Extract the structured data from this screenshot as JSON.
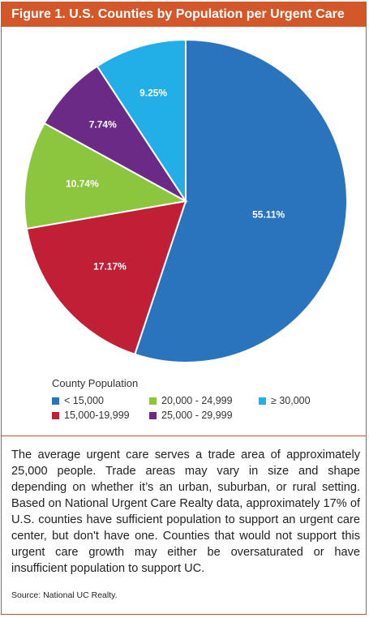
{
  "header": {
    "title": "Figure 1. U.S. Counties by Population per Urgent Care"
  },
  "chart_data": {
    "type": "pie",
    "title": "Figure 1. U.S. Counties by Population per Urgent Care",
    "legend_title": "County Population",
    "categories": [
      "< 15,000",
      "15,000-19,999",
      "20,000 - 24,999",
      "25,000 - 29,999",
      "≥ 30,000"
    ],
    "values": [
      55.11,
      17.17,
      10.74,
      7.74,
      9.25
    ],
    "labels": [
      "55.11%",
      "17.17%",
      "10.74%",
      "7.74%",
      "9.25%"
    ],
    "colors": [
      "#2a74bd",
      "#c11f36",
      "#8cc63f",
      "#6b2a86",
      "#22aee6"
    ],
    "start_angle": "top",
    "direction": "clockwise",
    "legend_position": "bottom-left"
  },
  "body": {
    "paragraph": "The average urgent care serves a trade area of approximately 25,000 people. Trade areas may vary in size and shape depending on whether it’s an urban, suburban, or rural setting. Based on National Urgent Care Realty data, approximately 17% of U.S. counties have sufficient population to support an urgent care center, but don't have one. Counties that would not support this urgent care growth may either be oversaturated or have insufficient population to support UC.",
    "source": "Source: National UC Realty."
  }
}
